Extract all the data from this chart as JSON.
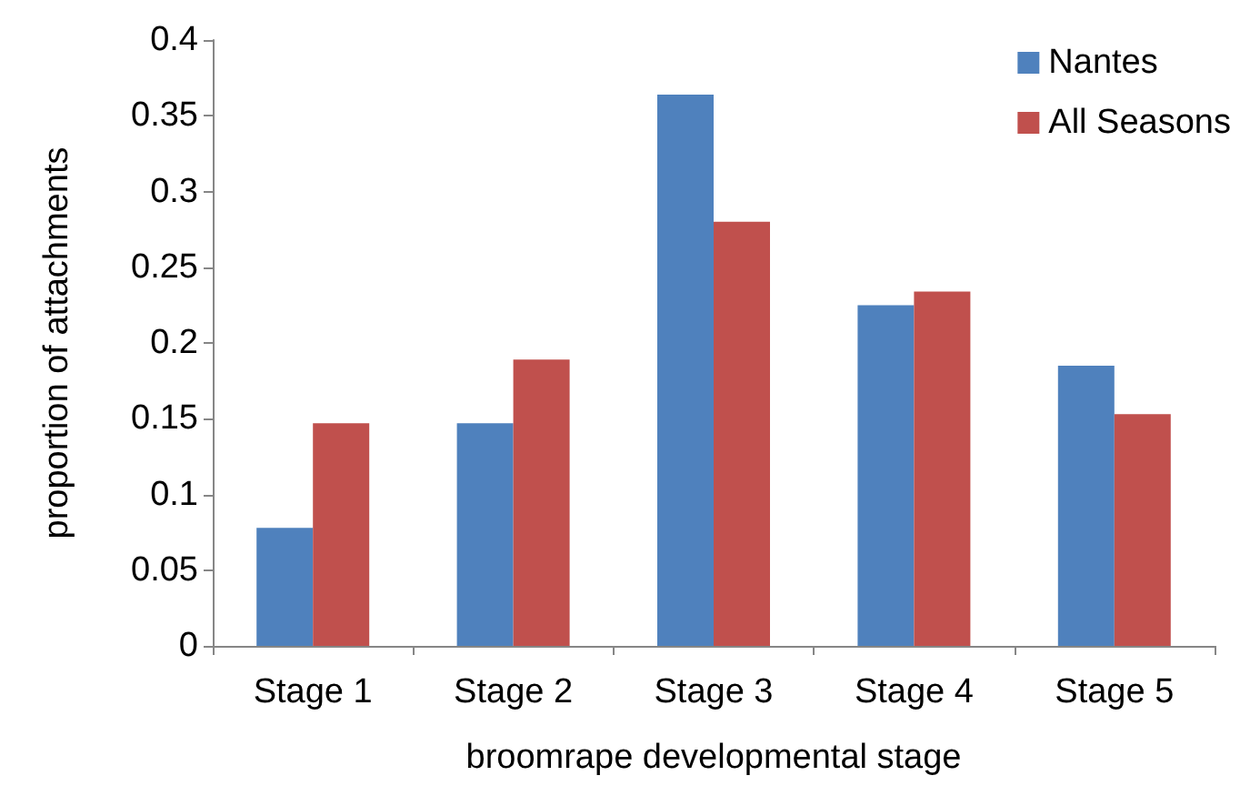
{
  "chart_data": {
    "type": "bar",
    "xlabel": "broomrape developmental stage",
    "ylabel": "proportion of attachments",
    "categories": [
      "Stage 1",
      "Stage 2",
      "Stage 3",
      "Stage 4",
      "Stage 5"
    ],
    "series": [
      {
        "name": "Nantes",
        "color": "#4f81bd",
        "values": [
          0.078,
          0.147,
          0.364,
          0.225,
          0.185
        ]
      },
      {
        "name": "All Seasons",
        "color": "#c0504d",
        "values": [
          0.147,
          0.189,
          0.28,
          0.234,
          0.153
        ]
      }
    ],
    "ylim": [
      0,
      0.4
    ],
    "yticks": [
      0,
      0.05,
      0.1,
      0.15,
      0.2,
      0.25,
      0.3,
      0.35,
      0.4
    ],
    "grid": false,
    "legend": "top right"
  }
}
